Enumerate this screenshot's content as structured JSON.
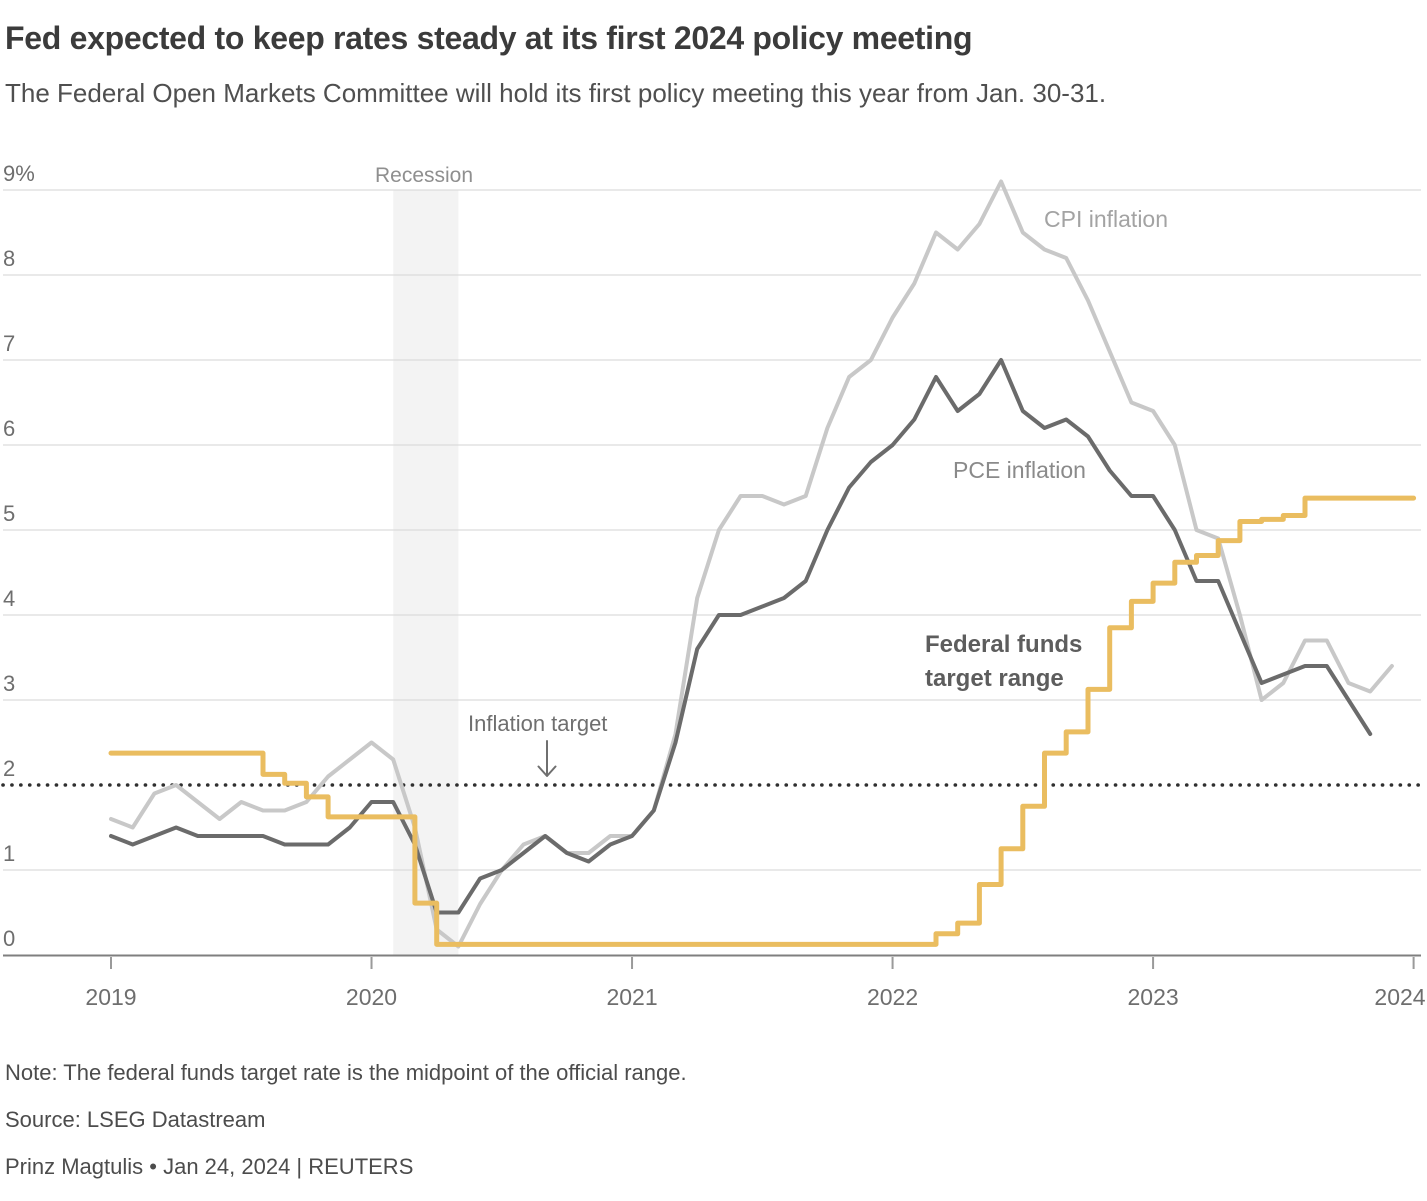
{
  "header": {
    "title": "Fed expected to keep rates steady at its first 2024 policy meeting",
    "subtitle": "The Federal Open Markets Committee will hold its first policy meeting this year from Jan. 30-31."
  },
  "footer": {
    "note": "Note: The federal funds target rate is the midpoint of the official range.",
    "source": "Source: LSEG Datastream",
    "byline": "Prinz Magtulis • Jan 24, 2024 | REUTERS"
  },
  "chart_data": {
    "type": "line",
    "title": "Fed expected to keep rates steady at its first 2024 policy meeting",
    "x_start": "2019-01",
    "x_end": "2024-01",
    "xlabel": "",
    "ylabel": "percent",
    "ylim": [
      0,
      9
    ],
    "grid": "horizontal",
    "legend_position": "inline-annotations",
    "y_axis": {
      "ticks": [
        {
          "label": "9%",
          "value": 9,
          "gridline": true
        },
        {
          "label": "8",
          "value": 8,
          "gridline": true
        },
        {
          "label": "7",
          "value": 7,
          "gridline": true
        },
        {
          "label": "6",
          "value": 6,
          "gridline": true
        },
        {
          "label": "5",
          "value": 5,
          "gridline": true
        },
        {
          "label": "4",
          "value": 4,
          "gridline": true
        },
        {
          "label": "3",
          "value": 3,
          "gridline": true
        },
        {
          "label": "2",
          "value": 2,
          "gridline": false
        },
        {
          "label": "1",
          "value": 1,
          "gridline": true
        },
        {
          "label": "0",
          "value": 0,
          "gridline": false
        }
      ]
    },
    "x_axis": {
      "ticks": [
        {
          "label": "2019",
          "month": 0
        },
        {
          "label": "2020",
          "month": 12
        },
        {
          "label": "2021",
          "month": 24
        },
        {
          "label": "2022",
          "month": 36
        },
        {
          "label": "2023",
          "month": 48
        },
        {
          "label": "2024",
          "month": 60
        }
      ]
    },
    "annotations": {
      "recession": "Recession",
      "cpi": "CPI inflation",
      "pce": "PCE inflation",
      "ffr_line1": "Federal funds",
      "ffr_line2": "target range",
      "inflation_target": "Inflation target"
    },
    "recession_band": {
      "start_month": 13,
      "end_month": 16
    },
    "target_value": 2,
    "colors": {
      "cpi": "#c8c8c8",
      "pce": "#6b6b6b",
      "ffr": "#eabd60",
      "band": "#f3f3f3",
      "grid": "#dcdcdc",
      "axis": "#7f7f7f",
      "dots": "#2f2f2f",
      "tick": "#9a9a9a"
    },
    "series": [
      {
        "name": "CPI inflation",
        "key": "cpi",
        "style": "line",
        "width": 4,
        "start_month": 0,
        "values": [
          1.6,
          1.5,
          1.9,
          2.0,
          1.8,
          1.6,
          1.8,
          1.7,
          1.7,
          1.8,
          2.1,
          2.3,
          2.5,
          2.3,
          1.5,
          0.3,
          0.1,
          0.6,
          1.0,
          1.3,
          1.4,
          1.2,
          1.2,
          1.4,
          1.4,
          1.7,
          2.6,
          4.2,
          5.0,
          5.4,
          5.4,
          5.3,
          5.4,
          6.2,
          6.8,
          7.0,
          7.5,
          7.9,
          8.5,
          8.3,
          8.6,
          9.1,
          8.5,
          8.3,
          8.2,
          7.7,
          7.1,
          6.5,
          6.4,
          6.0,
          5.0,
          4.9,
          4.0,
          3.0,
          3.2,
          3.7,
          3.7,
          3.2,
          3.1,
          3.4
        ]
      },
      {
        "name": "PCE inflation",
        "key": "pce",
        "style": "line",
        "width": 4,
        "start_month": 0,
        "values": [
          1.4,
          1.3,
          1.4,
          1.5,
          1.4,
          1.4,
          1.4,
          1.4,
          1.3,
          1.3,
          1.3,
          1.5,
          1.8,
          1.8,
          1.3,
          0.5,
          0.5,
          0.9,
          1.0,
          1.2,
          1.4,
          1.2,
          1.1,
          1.3,
          1.4,
          1.7,
          2.5,
          3.6,
          4.0,
          4.0,
          4.1,
          4.2,
          4.4,
          5.0,
          5.5,
          5.8,
          6.0,
          6.3,
          6.8,
          6.4,
          6.6,
          7.0,
          6.4,
          6.2,
          6.3,
          6.1,
          5.7,
          5.4,
          5.4,
          5.0,
          4.4,
          4.4,
          3.8,
          3.2,
          3.3,
          3.4,
          3.4,
          3.0,
          2.6
        ]
      },
      {
        "name": "Federal funds target range",
        "key": "ffr",
        "style": "step",
        "width": 5,
        "start_month": 0,
        "values": [
          2.375,
          2.375,
          2.375,
          2.375,
          2.375,
          2.375,
          2.375,
          2.125,
          2.02,
          1.86,
          1.625,
          1.625,
          1.625,
          1.625,
          0.61,
          0.125,
          0.125,
          0.125,
          0.125,
          0.125,
          0.125,
          0.125,
          0.125,
          0.125,
          0.125,
          0.125,
          0.125,
          0.125,
          0.125,
          0.125,
          0.125,
          0.125,
          0.125,
          0.125,
          0.125,
          0.125,
          0.125,
          0.125,
          0.25,
          0.375,
          0.83,
          1.25,
          1.75,
          2.375,
          2.625,
          3.125,
          3.85,
          4.16,
          4.375,
          4.62,
          4.7,
          4.875,
          5.1,
          5.125,
          5.17,
          5.375,
          5.375,
          5.375,
          5.375,
          5.375
        ]
      }
    ]
  }
}
